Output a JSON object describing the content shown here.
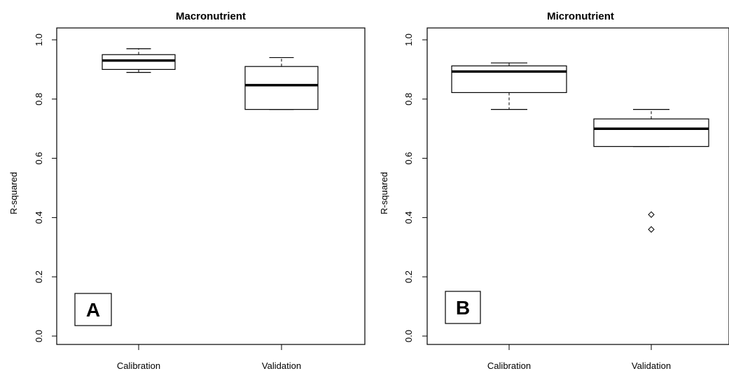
{
  "chart_data": [
    {
      "type": "box",
      "title": "Macronutrient",
      "ylabel": "R-squared",
      "xlabel": "",
      "ylim": [
        0.0,
        1.0
      ],
      "yticks": [
        "0.0",
        "0.2",
        "0.4",
        "0.6",
        "0.8",
        "1.0"
      ],
      "ytick_values": [
        0.0,
        0.2,
        0.4,
        0.6,
        0.8,
        1.0
      ],
      "categories": [
        "Calibration",
        "Validation"
      ],
      "boxes": [
        {
          "min": 0.89,
          "q1": 0.9,
          "median": 0.93,
          "q3": 0.95,
          "max": 0.97,
          "outliers": []
        },
        {
          "min": 0.765,
          "q1": 0.765,
          "median": 0.847,
          "q3": 0.91,
          "max": 0.94,
          "outliers": []
        }
      ],
      "panel_label": "A",
      "grid": false
    },
    {
      "type": "box",
      "title": "Micronutrient",
      "ylabel": "R-squared",
      "xlabel": "",
      "ylim": [
        0.0,
        1.0
      ],
      "yticks": [
        "0.0",
        "0.2",
        "0.4",
        "0.6",
        "0.8",
        "1.0"
      ],
      "ytick_values": [
        0.0,
        0.2,
        0.4,
        0.6,
        0.8,
        1.0
      ],
      "categories": [
        "Calibration",
        "Validation"
      ],
      "boxes": [
        {
          "min": 0.765,
          "q1": 0.822,
          "median": 0.893,
          "q3": 0.912,
          "max": 0.922,
          "outliers": []
        },
        {
          "min": 0.64,
          "q1": 0.64,
          "median": 0.7,
          "q3": 0.733,
          "max": 0.765,
          "outliers": [
            0.41,
            0.36
          ]
        }
      ],
      "panel_label": "B",
      "grid": false
    }
  ]
}
